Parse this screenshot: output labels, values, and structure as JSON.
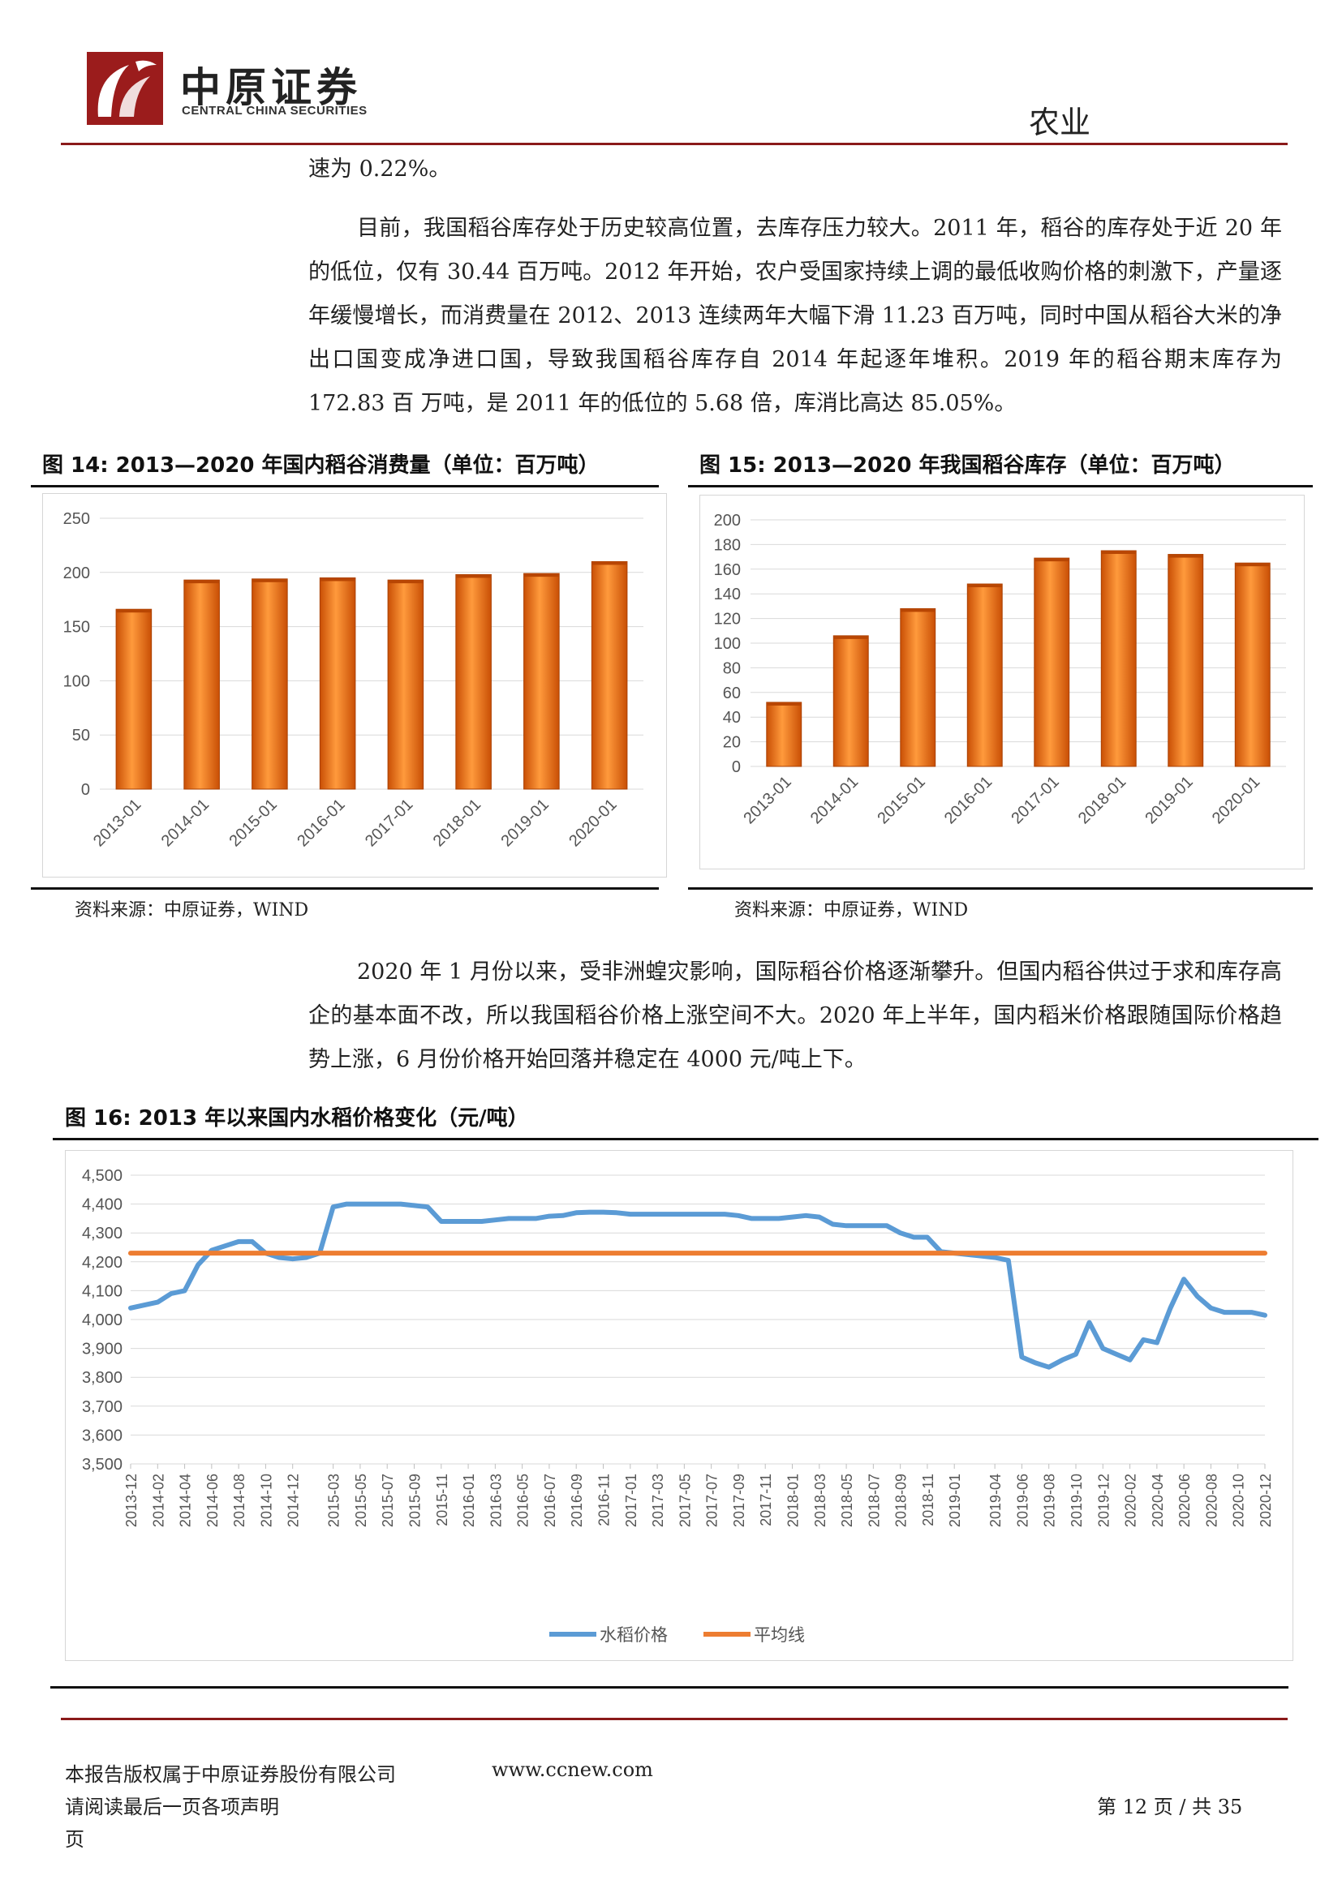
{
  "header": {
    "logo_cn": "中原证券",
    "logo_en": "CENTRAL CHINA SECURITIES",
    "section": "农业"
  },
  "body": {
    "para0": "速为 0.22%。",
    "para1": "目前，我国稻谷库存处于历史较高位置，去库存压力较大。2011 年，稻谷的库存处于近 20 年的低位，仅有 30.44 百万吨。2012 年开始，农户受国家持续上调的最低收购价格的刺激下，产量逐年缓慢增长，而消费量在 2012、2013 连续两年大幅下滑 11.23 百万吨，同时中国从稻谷大米的净出口国变成净进口国，导致我国稻谷库存自 2014 年起逐年堆积。2019 年的稻谷期末库存为 172.83 百 万吨，是 2011 年的低位的 5.68 倍，库消比高达 85.05%。",
    "para2": "2020 年 1 月份以来，受非洲蝗灾影响，国际稻谷价格逐渐攀升。但国内稻谷供过于求和库存高企的基本面不改，所以我国稻谷价格上涨空间不大。2020 年上半年，国内稻米价格跟随国际价格趋势上涨，6 月份价格开始回落并稳定在 4000 元/吨上下。"
  },
  "figures": {
    "fig14_title": "图 14:  2013—2020 年国内稻谷消费量（单位：百万吨）",
    "fig15_title": "图 15:  2013—2020 年我国稻谷库存（单位：百万吨）",
    "fig16_title": "图 16:  2013 年以来国内水稻价格变化（元/吨）",
    "source_left": "资料来源：中原证券，WIND",
    "source_right": "资料来源：中原证券，WIND"
  },
  "colors": {
    "bar_orange": "#f07a1c",
    "line_blue": "#5b9bd5",
    "line_orange": "#ed7d31",
    "brand_red": "#8a1a1a"
  },
  "chart_data": [
    {
      "id": "fig14",
      "type": "bar",
      "categories": [
        "2013-01",
        "2014-01",
        "2015-01",
        "2016-01",
        "2017-01",
        "2018-01",
        "2019-01",
        "2020-01"
      ],
      "values": [
        166,
        193,
        194,
        195,
        193,
        198,
        199,
        210
      ],
      "ylim": [
        0,
        250
      ],
      "yticks": [
        0,
        50,
        100,
        150,
        200,
        250
      ],
      "grid": true
    },
    {
      "id": "fig15",
      "type": "bar",
      "categories": [
        "2013-01",
        "2014-01",
        "2015-01",
        "2016-01",
        "2017-01",
        "2018-01",
        "2019-01",
        "2020-01"
      ],
      "values": [
        52,
        106,
        128,
        148,
        169,
        175,
        172,
        165
      ],
      "ylim": [
        0,
        200
      ],
      "yticks": [
        0,
        20,
        40,
        60,
        80,
        100,
        120,
        140,
        160,
        180,
        200
      ],
      "grid": true
    },
    {
      "id": "fig16",
      "type": "line",
      "ylim": [
        3500,
        4500
      ],
      "yticks": [
        "3,500",
        "3,600",
        "3,700",
        "3,800",
        "3,900",
        "4,000",
        "4,100",
        "4,200",
        "4,300",
        "4,400",
        "4,500"
      ],
      "x_start": "2013-12",
      "x_end": "2020-12",
      "x_ticks": [
        "2013-12",
        "2014-02",
        "2014-04",
        "2014-06",
        "2014-08",
        "2014-10",
        "2014-12",
        "2015-03",
        "2015-05",
        "2015-07",
        "2015-09",
        "2015-11",
        "2016-01",
        "2016-03",
        "2016-05",
        "2016-07",
        "2016-09",
        "2016-11",
        "2017-01",
        "2017-03",
        "2017-05",
        "2017-07",
        "2017-09",
        "2017-11",
        "2018-01",
        "2018-03",
        "2018-05",
        "2018-07",
        "2018-09",
        "2018-11",
        "2019-01",
        "2019-04",
        "2019-06",
        "2019-08",
        "2019-10",
        "2019-12",
        "2020-02",
        "2020-04",
        "2020-06",
        "2020-08",
        "2020-10",
        "2020-12"
      ],
      "legend_position": "bottom",
      "series": [
        {
          "name": "水稻价格",
          "color": "#5b9bd5",
          "points": [
            [
              "2013-12",
              4040
            ],
            [
              "2014-01",
              4050
            ],
            [
              "2014-02",
              4060
            ],
            [
              "2014-03",
              4090
            ],
            [
              "2014-04",
              4100
            ],
            [
              "2014-05",
              4190
            ],
            [
              "2014-06",
              4240
            ],
            [
              "2014-07",
              4255
            ],
            [
              "2014-08",
              4270
            ],
            [
              "2014-09",
              4270
            ],
            [
              "2014-10",
              4230
            ],
            [
              "2014-11",
              4215
            ],
            [
              "2014-12",
              4210
            ],
            [
              "2015-01",
              4215
            ],
            [
              "2015-02",
              4230
            ],
            [
              "2015-03",
              4390
            ],
            [
              "2015-04",
              4400
            ],
            [
              "2015-05",
              4400
            ],
            [
              "2015-06",
              4400
            ],
            [
              "2015-07",
              4400
            ],
            [
              "2015-08",
              4400
            ],
            [
              "2015-09",
              4395
            ],
            [
              "2015-10",
              4390
            ],
            [
              "2015-11",
              4340
            ],
            [
              "2015-12",
              4340
            ],
            [
              "2016-01",
              4340
            ],
            [
              "2016-02",
              4340
            ],
            [
              "2016-03",
              4345
            ],
            [
              "2016-04",
              4350
            ],
            [
              "2016-05",
              4350
            ],
            [
              "2016-06",
              4350
            ],
            [
              "2016-07",
              4358
            ],
            [
              "2016-08",
              4360
            ],
            [
              "2016-09",
              4370
            ],
            [
              "2016-10",
              4372
            ],
            [
              "2016-11",
              4372
            ],
            [
              "2016-12",
              4370
            ],
            [
              "2017-01",
              4365
            ],
            [
              "2017-02",
              4365
            ],
            [
              "2017-03",
              4365
            ],
            [
              "2017-04",
              4365
            ],
            [
              "2017-05",
              4365
            ],
            [
              "2017-06",
              4365
            ],
            [
              "2017-07",
              4365
            ],
            [
              "2017-08",
              4365
            ],
            [
              "2017-09",
              4360
            ],
            [
              "2017-10",
              4350
            ],
            [
              "2017-11",
              4350
            ],
            [
              "2017-12",
              4350
            ],
            [
              "2018-01",
              4355
            ],
            [
              "2018-02",
              4360
            ],
            [
              "2018-03",
              4355
            ],
            [
              "2018-04",
              4330
            ],
            [
              "2018-05",
              4325
            ],
            [
              "2018-06",
              4325
            ],
            [
              "2018-07",
              4325
            ],
            [
              "2018-08",
              4325
            ],
            [
              "2018-09",
              4300
            ],
            [
              "2018-10",
              4285
            ],
            [
              "2018-11",
              4285
            ],
            [
              "2018-12",
              4235
            ],
            [
              "2019-01",
              4230
            ],
            [
              "2019-02",
              4225
            ],
            [
              "2019-03",
              4220
            ],
            [
              "2019-04",
              4215
            ],
            [
              "2019-05",
              4205
            ],
            [
              "2019-06",
              3870
            ],
            [
              "2019-07",
              3850
            ],
            [
              "2019-08",
              3835
            ],
            [
              "2019-09",
              3860
            ],
            [
              "2019-10",
              3880
            ],
            [
              "2019-11",
              3990
            ],
            [
              "2019-12",
              3900
            ],
            [
              "2020-01",
              3880
            ],
            [
              "2020-02",
              3860
            ],
            [
              "2020-03",
              3930
            ],
            [
              "2020-04",
              3920
            ],
            [
              "2020-05",
              4040
            ],
            [
              "2020-06",
              4140
            ],
            [
              "2020-07",
              4080
            ],
            [
              "2020-08",
              4040
            ],
            [
              "2020-09",
              4025
            ],
            [
              "2020-10",
              4025
            ],
            [
              "2020-11",
              4025
            ],
            [
              "2020-12",
              4015
            ]
          ]
        },
        {
          "name": "平均线",
          "color": "#ed7d31",
          "points": [
            [
              "2013-12",
              4230
            ],
            [
              "2020-12",
              4230
            ]
          ]
        }
      ]
    }
  ],
  "footer": {
    "copyright": "本报告版权属于中原证券股份有限公司",
    "website": "www.ccnew.com",
    "notice": "请阅读最后一页各项声明",
    "page_label": "第 12 页 / 共 35",
    "page_suffix": "页"
  }
}
